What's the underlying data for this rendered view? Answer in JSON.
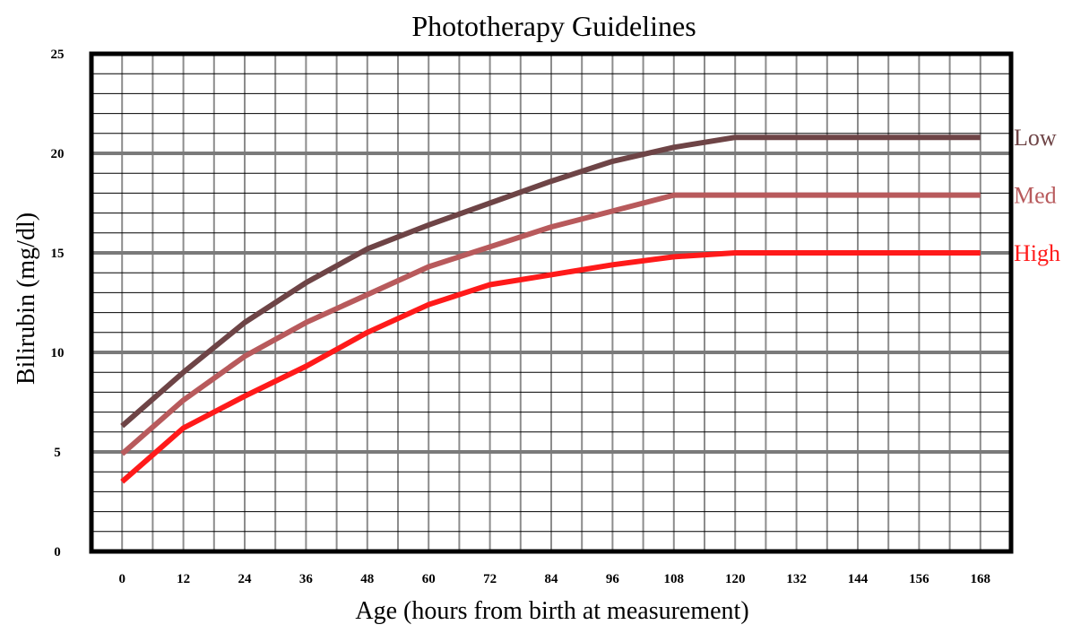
{
  "chart_data": {
    "type": "line",
    "title": "Phototherapy Guidelines",
    "xlabel": "Age (hours from birth at measurement)",
    "ylabel": "Bilirubin (mg/dl)",
    "x_ticks": [
      "0",
      "12",
      "24",
      "36",
      "48",
      "60",
      "72",
      "84",
      "96",
      "108",
      "120",
      "132",
      "144",
      "156",
      "168"
    ],
    "y_ticks": [
      "0",
      "5",
      "10",
      "15",
      "20",
      "25"
    ],
    "xlim": [
      -6,
      174
    ],
    "ylim": [
      0,
      25
    ],
    "grid": true,
    "legend": "inline labels at right end of each line",
    "series": [
      {
        "name": "Low",
        "color": "#6e4446",
        "x": [
          0,
          12,
          24,
          36,
          48,
          60,
          72,
          84,
          96,
          108,
          120,
          132,
          144,
          156,
          168
        ],
        "y": [
          6.3,
          9.0,
          11.5,
          13.5,
          15.2,
          16.4,
          17.5,
          18.6,
          19.6,
          20.3,
          20.8,
          20.8,
          20.8,
          20.8,
          20.8
        ]
      },
      {
        "name": "Med",
        "color": "#b85a5c",
        "x": [
          0,
          12,
          24,
          36,
          48,
          60,
          72,
          84,
          96,
          108,
          120,
          132,
          144,
          156,
          168
        ],
        "y": [
          4.9,
          7.6,
          9.8,
          11.5,
          12.9,
          14.3,
          15.3,
          16.3,
          17.1,
          17.9,
          17.9,
          17.9,
          17.9,
          17.9,
          17.9
        ]
      },
      {
        "name": "High",
        "color": "#ff1a1a",
        "x": [
          0,
          12,
          24,
          36,
          48,
          60,
          72,
          84,
          96,
          108,
          120,
          132,
          144,
          156,
          168
        ],
        "y": [
          3.5,
          6.2,
          7.8,
          9.3,
          11.0,
          12.4,
          13.4,
          13.9,
          14.4,
          14.8,
          15.0,
          15.0,
          15.0,
          15.0,
          15.0
        ]
      }
    ]
  }
}
